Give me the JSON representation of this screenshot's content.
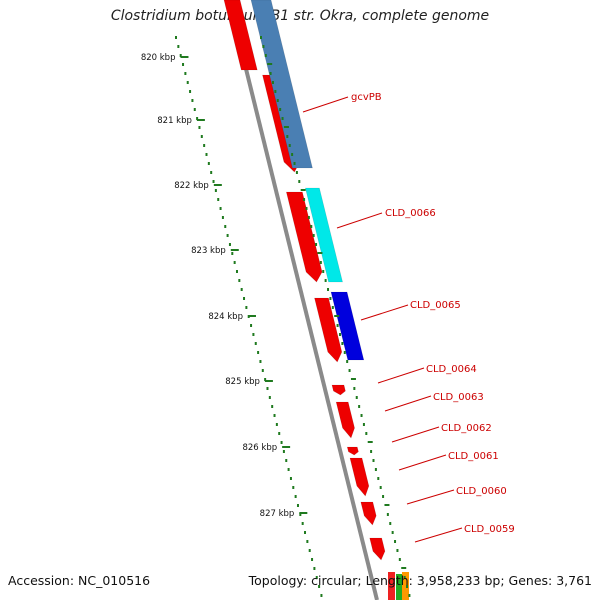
{
  "title": "Clostridium botulinum B1 str. Okra, complete genome",
  "footer": {
    "accession": "Accession: NC_010516",
    "topology": "Topology: circular; Length: 3,958,233 bp; Genes: 3,761"
  },
  "colors": {
    "backbone": "#8a8a8a",
    "gene_red": "#ee0000",
    "gene_steelblue": "#4a7fb3",
    "gene_cyan": "#00e8e8",
    "gene_blue": "#0000dd",
    "gc_marks": "#1f7a1f",
    "label_red": "#cc0000"
  },
  "scale_ticks": [
    {
      "label": "820 kbp"
    },
    {
      "label": "821 kbp"
    },
    {
      "label": "822 kbp"
    },
    {
      "label": "823 kbp"
    },
    {
      "label": "824 kbp"
    },
    {
      "label": "825 kbp"
    },
    {
      "label": "826 kbp"
    },
    {
      "label": "827 kbp"
    }
  ],
  "gene_labels": [
    {
      "text": "gcvPB"
    },
    {
      "text": "CLD_0066"
    },
    {
      "text": "CLD_0065"
    },
    {
      "text": "CLD_0064"
    },
    {
      "text": "CLD_0063"
    },
    {
      "text": "CLD_0062"
    },
    {
      "text": "CLD_0061"
    },
    {
      "text": "CLD_0060"
    },
    {
      "text": "CLD_0059"
    }
  ]
}
